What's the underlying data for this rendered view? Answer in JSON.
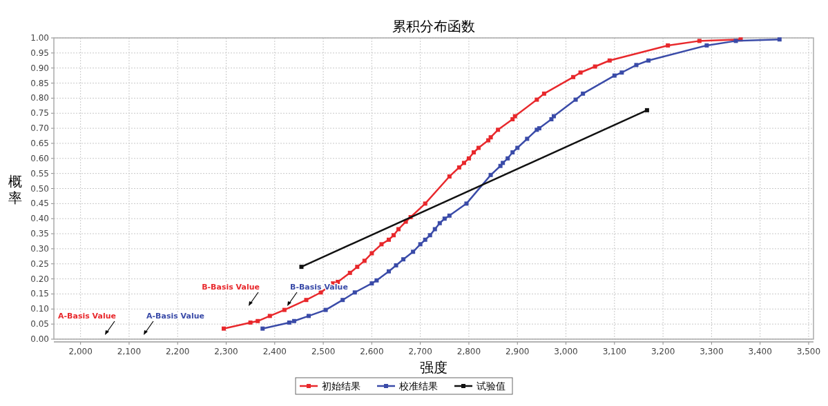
{
  "chart_data": {
    "type": "line",
    "title": "累积分布函数",
    "xlabel": "强度",
    "ylabel": "概率",
    "marker": "square",
    "line_style": "solid",
    "grid": true,
    "legend": "bottom",
    "xlim": [
      1945,
      3510
    ],
    "ylim": [
      0,
      1
    ],
    "xticks": [
      {
        "value": 2000,
        "label": "2,000"
      },
      {
        "value": 2100,
        "label": "2,100"
      },
      {
        "value": 2200,
        "label": "2,200"
      },
      {
        "value": 2300,
        "label": "2,300"
      },
      {
        "value": 2400,
        "label": "2,400"
      },
      {
        "value": 2500,
        "label": "2,500"
      },
      {
        "value": 2600,
        "label": "2,600"
      },
      {
        "value": 2700,
        "label": "2,700"
      },
      {
        "value": 2800,
        "label": "2,800"
      },
      {
        "value": 2900,
        "label": "2,900"
      },
      {
        "value": 3000,
        "label": "3,000"
      },
      {
        "value": 3100,
        "label": "3,100"
      },
      {
        "value": 3200,
        "label": "3,200"
      },
      {
        "value": 3300,
        "label": "3,300"
      },
      {
        "value": 3400,
        "label": "3,400"
      },
      {
        "value": 3500,
        "label": "3,500"
      }
    ],
    "yticks": [
      {
        "value": 0,
        "label": "0.00"
      },
      {
        "value": 0.05,
        "label": "0.05"
      },
      {
        "value": 0.1,
        "label": "0.10"
      },
      {
        "value": 0.15,
        "label": "0.15"
      },
      {
        "value": 0.2,
        "label": "0.20"
      },
      {
        "value": 0.25,
        "label": "0.25"
      },
      {
        "value": 0.3,
        "label": "0.30"
      },
      {
        "value": 0.35,
        "label": "0.35"
      },
      {
        "value": 0.4,
        "label": "0.40"
      },
      {
        "value": 0.45,
        "label": "0.45"
      },
      {
        "value": 0.5,
        "label": "0.50"
      },
      {
        "value": 0.55,
        "label": "0.55"
      },
      {
        "value": 0.6,
        "label": "0.60"
      },
      {
        "value": 0.65,
        "label": "0.65"
      },
      {
        "value": 0.7,
        "label": "0.70"
      },
      {
        "value": 0.75,
        "label": "0.75"
      },
      {
        "value": 0.8,
        "label": "0.80"
      },
      {
        "value": 0.85,
        "label": "0.85"
      },
      {
        "value": 0.9,
        "label": "0.90"
      },
      {
        "value": 0.95,
        "label": "0.95"
      },
      {
        "value": 1,
        "label": "1.00"
      }
    ],
    "series": [
      {
        "name": "初始结果",
        "color": "#e8282c",
        "x": [
          2295,
          2350,
          2365,
          2390,
          2420,
          2465,
          2495,
          2520,
          2530,
          2555,
          2570,
          2585,
          2600,
          2620,
          2635,
          2645,
          2655,
          2670,
          2680,
          2710,
          2760,
          2780,
          2790,
          2800,
          2810,
          2820,
          2840,
          2845,
          2860,
          2890,
          2895,
          2940,
          2955,
          3015,
          3030,
          3060,
          3090,
          3210,
          3275,
          3360
        ],
        "values": [
          0.035,
          0.055,
          0.06,
          0.077,
          0.097,
          0.13,
          0.155,
          0.185,
          0.19,
          0.22,
          0.24,
          0.26,
          0.285,
          0.315,
          0.33,
          0.345,
          0.365,
          0.39,
          0.405,
          0.45,
          0.54,
          0.57,
          0.585,
          0.6,
          0.62,
          0.635,
          0.66,
          0.67,
          0.695,
          0.73,
          0.74,
          0.795,
          0.815,
          0.87,
          0.885,
          0.905,
          0.925,
          0.975,
          0.99,
          0.995
        ]
      },
      {
        "name": "校准结果",
        "color": "#3a4ba8",
        "x": [
          2375,
          2430,
          2440,
          2470,
          2505,
          2540,
          2565,
          2600,
          2610,
          2635,
          2650,
          2665,
          2685,
          2700,
          2710,
          2720,
          2730,
          2740,
          2750,
          2760,
          2795,
          2845,
          2865,
          2870,
          2880,
          2890,
          2900,
          2920,
          2940,
          2945,
          2970,
          2975,
          3020,
          3035,
          3100,
          3115,
          3145,
          3170,
          3290,
          3350,
          3440
        ],
        "values": [
          0.035,
          0.055,
          0.06,
          0.077,
          0.097,
          0.13,
          0.155,
          0.185,
          0.195,
          0.225,
          0.245,
          0.265,
          0.29,
          0.315,
          0.33,
          0.345,
          0.365,
          0.385,
          0.4,
          0.41,
          0.45,
          0.545,
          0.575,
          0.585,
          0.6,
          0.62,
          0.635,
          0.665,
          0.695,
          0.7,
          0.73,
          0.74,
          0.795,
          0.815,
          0.875,
          0.885,
          0.91,
          0.925,
          0.975,
          0.99,
          0.995
        ]
      },
      {
        "name": "试验值",
        "color": "#111111",
        "x": [
          2455,
          3167
        ],
        "values": [
          0.24,
          0.76
        ]
      }
    ],
    "annotations": [
      "A-Basis Value",
      "A-Basis Value",
      "B-Basis Value",
      "B-Basis Value"
    ]
  }
}
